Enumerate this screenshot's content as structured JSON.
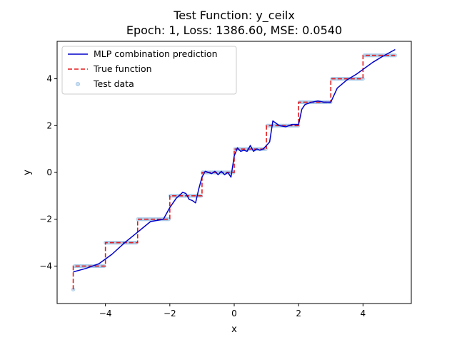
{
  "chart_data": {
    "type": "line",
    "title": "Test Function: y_ceilx",
    "subtitle": "Epoch: 1, Loss: 1386.60, MSE: 0.0540",
    "xlabel": "x",
    "ylabel": "y",
    "xlim": [
      -5.5,
      5.5
    ],
    "ylim": [
      -5.6,
      5.6
    ],
    "xticks": [
      -4,
      -2,
      0,
      2,
      4
    ],
    "yticks": [
      -4,
      -2,
      0,
      2,
      4
    ],
    "grid": false,
    "legend_position": "top-left",
    "colors": {
      "prediction": "#0000cc",
      "true_function": "#e41a1c",
      "test_data": "#9ec4e6"
    },
    "series": [
      {
        "name": "MLP combination prediction",
        "style": "solid",
        "x": [
          -5.0,
          -4.6,
          -4.2,
          -3.8,
          -3.4,
          -3.0,
          -2.6,
          -2.4,
          -2.2,
          -2.0,
          -1.8,
          -1.6,
          -1.5,
          -1.4,
          -1.3,
          -1.2,
          -1.1,
          -1.0,
          -0.9,
          -0.8,
          -0.7,
          -0.6,
          -0.5,
          -0.4,
          -0.3,
          -0.2,
          -0.1,
          0.0,
          0.1,
          0.2,
          0.3,
          0.4,
          0.5,
          0.6,
          0.7,
          0.8,
          0.9,
          1.0,
          1.1,
          1.2,
          1.4,
          1.6,
          1.8,
          2.0,
          2.1,
          2.2,
          2.4,
          2.6,
          2.8,
          3.0,
          3.2,
          3.5,
          3.8,
          4.0,
          4.3,
          4.6,
          5.0
        ],
        "y": [
          -4.25,
          -4.1,
          -3.9,
          -3.5,
          -3.0,
          -2.55,
          -2.1,
          -2.05,
          -2.0,
          -1.5,
          -1.1,
          -0.85,
          -0.9,
          -1.15,
          -1.2,
          -1.3,
          -0.7,
          -0.2,
          0.05,
          0.0,
          -0.05,
          0.05,
          -0.1,
          0.05,
          -0.1,
          0.0,
          -0.2,
          0.7,
          1.05,
          0.9,
          0.95,
          0.9,
          1.15,
          0.9,
          1.0,
          0.95,
          1.0,
          1.15,
          1.3,
          2.2,
          2.0,
          1.95,
          2.05,
          2.05,
          2.7,
          2.9,
          3.0,
          3.05,
          3.0,
          3.0,
          3.6,
          3.95,
          4.2,
          4.4,
          4.7,
          4.95,
          5.25
        ]
      },
      {
        "name": "True function",
        "style": "dashed",
        "x": [
          -5.0,
          -5.0,
          -4.0,
          -4.0,
          -3.0,
          -3.0,
          -2.0,
          -2.0,
          -1.0,
          -1.0,
          0.0,
          0.0,
          1.0,
          1.0,
          2.0,
          2.0,
          3.0,
          3.0,
          4.0,
          4.0,
          5.0
        ],
        "y": [
          -5,
          -4,
          -4,
          -3,
          -3,
          -2,
          -2,
          -1,
          -1,
          0,
          0,
          1,
          1,
          2,
          2,
          3,
          3,
          4,
          4,
          5,
          5
        ]
      },
      {
        "name": "Test data",
        "style": "scatter",
        "x_range": [
          -5.0,
          5.0
        ],
        "rule": "ceil"
      }
    ]
  }
}
